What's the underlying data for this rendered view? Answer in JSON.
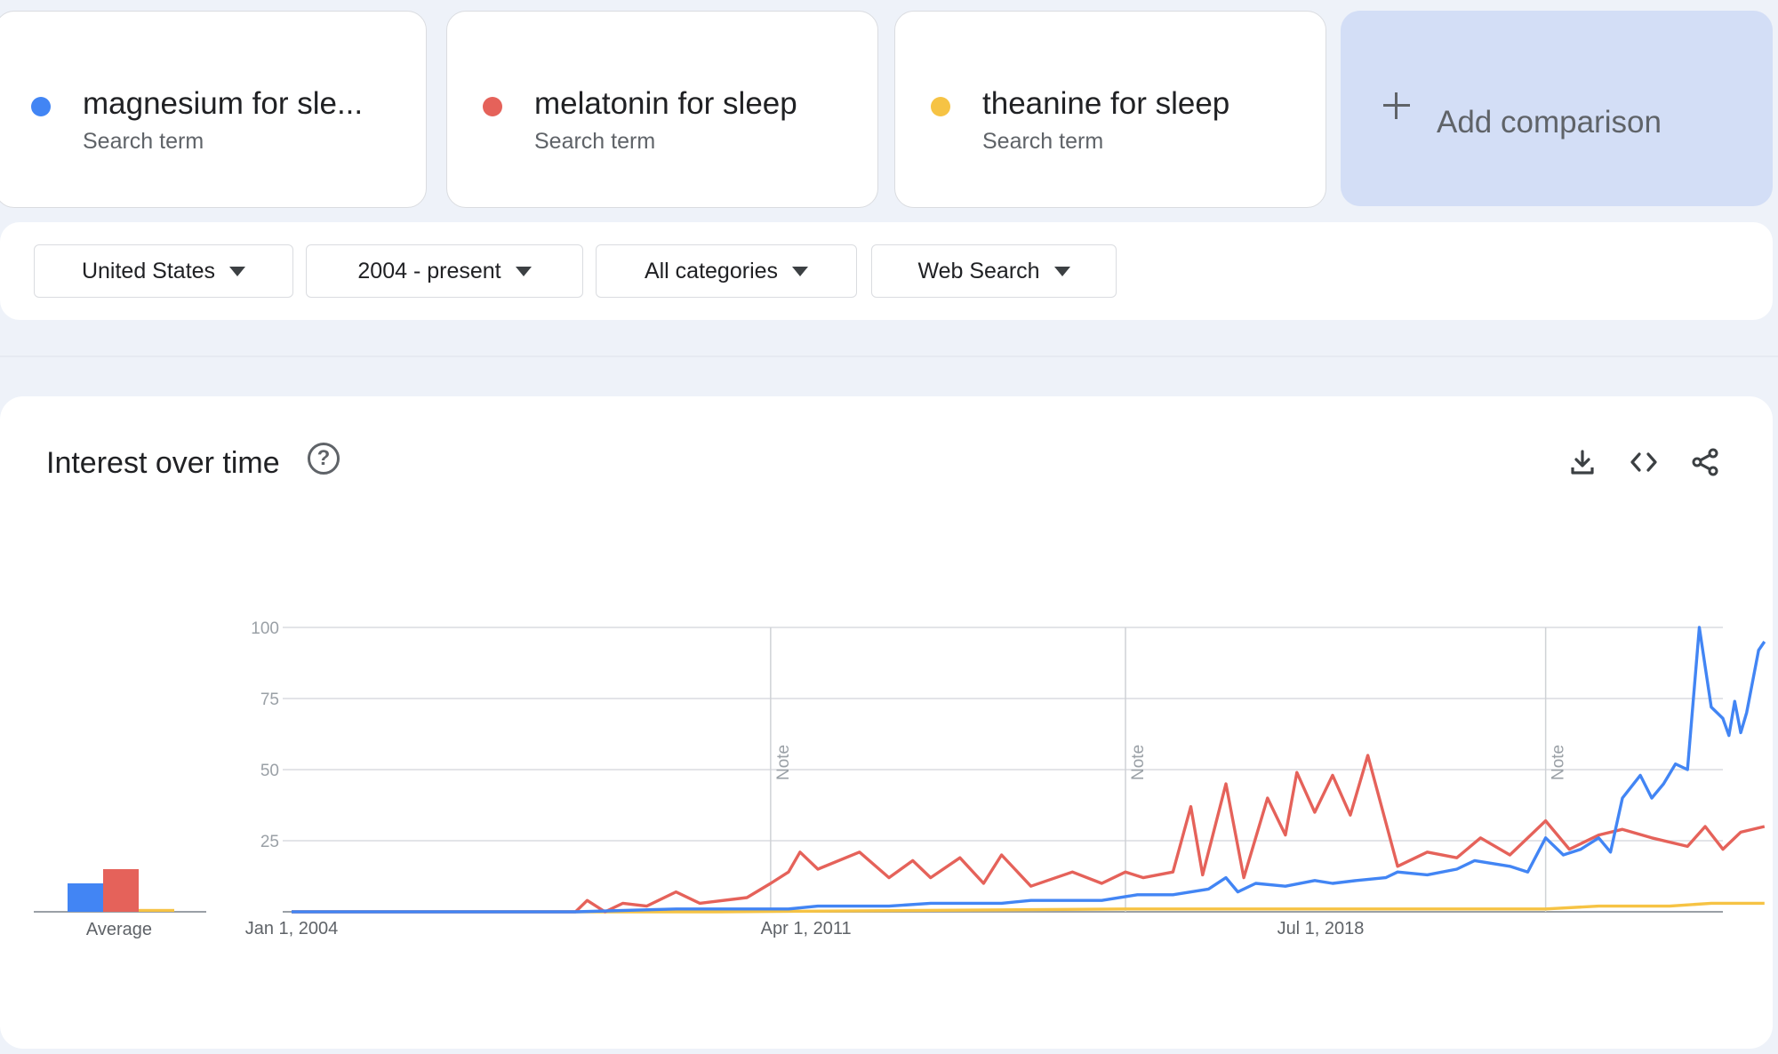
{
  "terms": [
    {
      "label": "magnesium for sle...",
      "sub": "Search term",
      "color": "#4285f4"
    },
    {
      "label": "melatonin for sleep",
      "sub": "Search term",
      "color": "#e5625a"
    },
    {
      "label": "theanine for sleep",
      "sub": "Search term",
      "color": "#f6c344"
    }
  ],
  "add_comparison": {
    "label": "Add comparison"
  },
  "filters": [
    {
      "label": "United States"
    },
    {
      "label": "2004 - present"
    },
    {
      "label": "All categories"
    },
    {
      "label": "Web Search"
    }
  ],
  "panel": {
    "title": "Interest over time",
    "help_icon": "help-circle-icon",
    "tools": [
      "download-icon",
      "embed-code-icon",
      "share-icon"
    ]
  },
  "chart_data": {
    "type": "line",
    "ylim": [
      0,
      100
    ],
    "yticks": [
      "25",
      "50",
      "75",
      "100"
    ],
    "xlim": [
      "2004-01-01",
      "2024-03-01"
    ],
    "xticks": [
      {
        "label": "Jan 1, 2004",
        "date": "2004-01-01"
      },
      {
        "label": "Apr 1, 2011",
        "date": "2011-04-01"
      },
      {
        "label": "Jul 1, 2018",
        "date": "2018-07-01"
      }
    ],
    "notes": [
      {
        "label": "Note",
        "date": "2010-10-01"
      },
      {
        "label": "Note",
        "date": "2015-10-01"
      },
      {
        "label": "Note",
        "date": "2021-09-01"
      }
    ],
    "average": {
      "label": "Average",
      "values": [
        {
          "series": "magnesium for sle...",
          "value": 10
        },
        {
          "series": "melatonin for sleep",
          "value": 15
        },
        {
          "series": "theanine for sleep",
          "value": 1
        }
      ]
    },
    "series": [
      {
        "name": "magnesium for sle...",
        "color": "#4285f4",
        "points": [
          [
            "2004-01-01",
            0
          ],
          [
            "2006-01-01",
            0
          ],
          [
            "2008-01-01",
            0
          ],
          [
            "2009-06-01",
            1
          ],
          [
            "2010-01-01",
            1
          ],
          [
            "2011-01-01",
            1
          ],
          [
            "2011-06-01",
            2
          ],
          [
            "2012-06-01",
            2
          ],
          [
            "2013-01-01",
            3
          ],
          [
            "2014-01-01",
            3
          ],
          [
            "2014-06-01",
            4
          ],
          [
            "2015-06-01",
            4
          ],
          [
            "2015-12-01",
            6
          ],
          [
            "2016-06-01",
            6
          ],
          [
            "2016-12-01",
            8
          ],
          [
            "2017-03-01",
            12
          ],
          [
            "2017-05-01",
            7
          ],
          [
            "2017-08-01",
            10
          ],
          [
            "2018-01-01",
            9
          ],
          [
            "2018-06-01",
            11
          ],
          [
            "2018-09-01",
            10
          ],
          [
            "2019-01-01",
            11
          ],
          [
            "2019-06-01",
            12
          ],
          [
            "2019-08-01",
            14
          ],
          [
            "2020-01-01",
            13
          ],
          [
            "2020-06-01",
            15
          ],
          [
            "2020-09-01",
            18
          ],
          [
            "2021-03-01",
            16
          ],
          [
            "2021-06-01",
            14
          ],
          [
            "2021-09-01",
            26
          ],
          [
            "2021-12-01",
            20
          ],
          [
            "2022-03-01",
            22
          ],
          [
            "2022-06-01",
            26
          ],
          [
            "2022-08-01",
            21
          ],
          [
            "2022-10-01",
            40
          ],
          [
            "2023-01-01",
            48
          ],
          [
            "2023-03-01",
            40
          ],
          [
            "2023-05-01",
            45
          ],
          [
            "2023-07-01",
            52
          ],
          [
            "2023-09-01",
            50
          ],
          [
            "2023-11-01",
            100
          ],
          [
            "2024-01-01",
            72
          ],
          [
            "2024-03-01",
            68
          ],
          [
            "2024-04-01",
            62
          ],
          [
            "2024-05-01",
            74
          ],
          [
            "2024-06-01",
            63
          ],
          [
            "2024-07-01",
            70
          ],
          [
            "2024-09-01",
            92
          ],
          [
            "2024-10-01",
            95
          ]
        ]
      },
      {
        "name": "melatonin for sleep",
        "color": "#e5625a",
        "points": [
          [
            "2004-01-01",
            0
          ],
          [
            "2006-01-01",
            0
          ],
          [
            "2008-01-01",
            0
          ],
          [
            "2008-03-01",
            4
          ],
          [
            "2008-06-01",
            0
          ],
          [
            "2008-09-01",
            3
          ],
          [
            "2009-01-01",
            2
          ],
          [
            "2009-06-01",
            7
          ],
          [
            "2009-10-01",
            3
          ],
          [
            "2010-06-01",
            5
          ],
          [
            "2010-10-01",
            10
          ],
          [
            "2011-01-01",
            14
          ],
          [
            "2011-03-01",
            21
          ],
          [
            "2011-06-01",
            15
          ],
          [
            "2012-01-01",
            21
          ],
          [
            "2012-06-01",
            12
          ],
          [
            "2012-10-01",
            18
          ],
          [
            "2013-01-01",
            12
          ],
          [
            "2013-06-01",
            19
          ],
          [
            "2013-10-01",
            10
          ],
          [
            "2014-01-01",
            20
          ],
          [
            "2014-06-01",
            9
          ],
          [
            "2015-01-01",
            14
          ],
          [
            "2015-06-01",
            10
          ],
          [
            "2015-10-01",
            14
          ],
          [
            "2016-01-01",
            12
          ],
          [
            "2016-06-01",
            14
          ],
          [
            "2016-09-01",
            37
          ],
          [
            "2016-11-01",
            13
          ],
          [
            "2017-03-01",
            45
          ],
          [
            "2017-06-01",
            12
          ],
          [
            "2017-10-01",
            40
          ],
          [
            "2018-01-01",
            27
          ],
          [
            "2018-03-01",
            49
          ],
          [
            "2018-06-01",
            35
          ],
          [
            "2018-09-01",
            48
          ],
          [
            "2018-12-01",
            34
          ],
          [
            "2019-03-01",
            55
          ],
          [
            "2019-08-01",
            16
          ],
          [
            "2020-01-01",
            21
          ],
          [
            "2020-06-01",
            19
          ],
          [
            "2020-10-01",
            26
          ],
          [
            "2021-03-01",
            20
          ],
          [
            "2021-09-01",
            32
          ],
          [
            "2022-01-01",
            22
          ],
          [
            "2022-06-01",
            27
          ],
          [
            "2022-10-01",
            29
          ],
          [
            "2023-03-01",
            26
          ],
          [
            "2023-09-01",
            23
          ],
          [
            "2023-12-01",
            30
          ],
          [
            "2024-03-01",
            22
          ],
          [
            "2024-06-01",
            28
          ],
          [
            "2024-10-01",
            30
          ]
        ]
      },
      {
        "name": "theanine for sleep",
        "color": "#f6c344",
        "points": [
          [
            "2004-01-01",
            0
          ],
          [
            "2010-01-01",
            0
          ],
          [
            "2015-10-01",
            1
          ],
          [
            "2019-01-01",
            1
          ],
          [
            "2021-09-01",
            1
          ],
          [
            "2022-06-01",
            2
          ],
          [
            "2023-06-01",
            2
          ],
          [
            "2024-01-01",
            3
          ],
          [
            "2024-06-01",
            3
          ],
          [
            "2024-10-01",
            3
          ]
        ]
      }
    ]
  }
}
